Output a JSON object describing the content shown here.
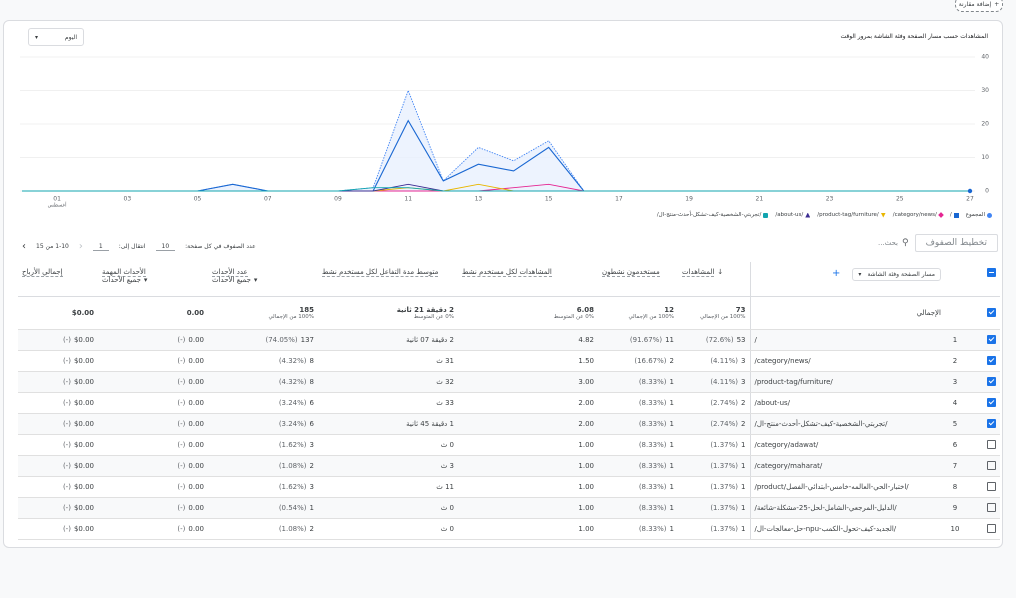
{
  "header": {
    "compare_button": "إضافة مقارنة"
  },
  "chart_data": {
    "type": "line",
    "title": "المشاهدات حسب مسار الصفحة وفئة الشاشة بمرور الوقت",
    "period": "اليوم",
    "categories": [
      null,
      "01",
      null,
      "03",
      null,
      "05",
      null,
      "07",
      null,
      "09",
      null,
      "11",
      null,
      "13",
      null,
      "15",
      null,
      "17",
      null,
      "19",
      null,
      "21",
      null,
      "23",
      null,
      "25",
      null,
      "27"
    ],
    "x_sublabel": "أغسطس",
    "ylim": [
      0,
      40
    ],
    "yticks": [
      0,
      10,
      20,
      30,
      40
    ],
    "grid": true,
    "series": [
      {
        "name": "المجموع",
        "color": "#4285f4",
        "values": [
          0,
          0,
          0,
          0,
          0,
          0,
          2,
          0,
          0,
          0,
          1,
          30,
          3,
          13,
          9,
          15,
          0,
          0,
          0,
          0,
          0,
          0,
          0,
          0,
          0,
          0,
          0,
          0
        ]
      },
      {
        "name": "/",
        "color": "#1967d2",
        "values": [
          0,
          0,
          0,
          0,
          0,
          0,
          2,
          0,
          0,
          0,
          0,
          21,
          3,
          8,
          6,
          13,
          0,
          0,
          0,
          0,
          0,
          0,
          0,
          0,
          0,
          0,
          0,
          0
        ]
      },
      {
        "name": "/category/news/",
        "color": "#e52592",
        "values": [
          0,
          0,
          0,
          0,
          0,
          0,
          0,
          0,
          0,
          0,
          0,
          0,
          0,
          0,
          1,
          2,
          0,
          0,
          0,
          0,
          0,
          0,
          0,
          0,
          0,
          0,
          0,
          0
        ]
      },
      {
        "name": "/product-tag/furniture/",
        "color": "#e8b600",
        "values": [
          0,
          0,
          0,
          0,
          0,
          0,
          0,
          0,
          0,
          0,
          0,
          1,
          0,
          2,
          0,
          0,
          0,
          0,
          0,
          0,
          0,
          0,
          0,
          0,
          0,
          0,
          0,
          0
        ]
      },
      {
        "name": "/about-us/",
        "color": "#3c2d92",
        "values": [
          0,
          0,
          0,
          0,
          0,
          0,
          0,
          0,
          0,
          0,
          0,
          2,
          0,
          0,
          0,
          0,
          0,
          0,
          0,
          0,
          0,
          0,
          0,
          0,
          0,
          0,
          0,
          0
        ]
      },
      {
        "name": "/تجربتي-الشخصية-كيف-تشكل-أحدث-منتج-ال/",
        "color": "#12a4af",
        "values": [
          0,
          0,
          0,
          0,
          0,
          0,
          0,
          0,
          0,
          0,
          1,
          1,
          0,
          0,
          0,
          0,
          0,
          0,
          0,
          0,
          0,
          0,
          0,
          0,
          0,
          0,
          0,
          0
        ]
      }
    ]
  },
  "toolbar": {
    "search_placeholder": "بحث...",
    "layout_button": "تخطيط الصفوف",
    "rows_per_page_label": "عدد الصفوف في كل صفحة:",
    "rows_per_page": "10",
    "goto_label": "انتقال إلى:",
    "goto_value": "1",
    "range": "1-10 من 15"
  },
  "table": {
    "dimension": "مسار الصفحة وفئة الشاشة",
    "columns": [
      {
        "label": "المشاهدات"
      },
      {
        "label": "مستخدمون نشطون"
      },
      {
        "label": "المشاهدات لكل مستخدم نشط"
      },
      {
        "label": "متوسط مدة التفاعل لكل مستخدم نشط"
      },
      {
        "label": "عدد الأحداث",
        "filter": "جميع الأحداث"
      },
      {
        "label": "الأحداث المهمة",
        "filter": "جميع الأحداث"
      },
      {
        "label": "إجمالي الأرباح"
      }
    ],
    "totals": {
      "label": "الإجمالي",
      "selected": true,
      "cells": [
        {
          "value": "73",
          "note": "100% من الإجمالي"
        },
        {
          "value": "12",
          "note": "100% من الإجمالي"
        },
        {
          "value": "6.08",
          "note": "0% عن المتوسط"
        },
        {
          "value": "2 دقيقة 21 ثانية",
          "note": "0% عن المتوسط"
        },
        {
          "value": "185",
          "note": "100% من الإجمالي"
        },
        {
          "value": "0.00"
        },
        {
          "value": "$0.00"
        }
      ]
    },
    "rows": [
      {
        "index": "1",
        "page": "/",
        "selected": true,
        "cells": [
          {
            "value": "53",
            "pct": "(72.6%)"
          },
          {
            "value": "11",
            "pct": "(91.67%)"
          },
          {
            "value": "4.82"
          },
          {
            "value": "2 دقيقة 07 ثانية"
          },
          {
            "value": "137",
            "pct": "(74.05%)"
          },
          {
            "value": "0.00",
            "pct": "(-)"
          },
          {
            "value": "$0.00",
            "pct": "(-)"
          }
        ]
      },
      {
        "index": "2",
        "page": "/category/news/",
        "selected": true,
        "cells": [
          {
            "value": "3",
            "pct": "(4.11%)"
          },
          {
            "value": "2",
            "pct": "(16.67%)"
          },
          {
            "value": "1.50"
          },
          {
            "value": "31 ث"
          },
          {
            "value": "8",
            "pct": "(4.32%)"
          },
          {
            "value": "0.00",
            "pct": "(-)"
          },
          {
            "value": "$0.00",
            "pct": "(-)"
          }
        ]
      },
      {
        "index": "3",
        "page": "/product-tag/furniture/",
        "selected": true,
        "cells": [
          {
            "value": "3",
            "pct": "(4.11%)"
          },
          {
            "value": "1",
            "pct": "(8.33%)"
          },
          {
            "value": "3.00"
          },
          {
            "value": "32 ث"
          },
          {
            "value": "8",
            "pct": "(4.32%)"
          },
          {
            "value": "0.00",
            "pct": "(-)"
          },
          {
            "value": "$0.00",
            "pct": "(-)"
          }
        ]
      },
      {
        "index": "4",
        "page": "/about-us/",
        "selected": true,
        "cells": [
          {
            "value": "2",
            "pct": "(2.74%)"
          },
          {
            "value": "1",
            "pct": "(8.33%)"
          },
          {
            "value": "2.00"
          },
          {
            "value": "33 ث"
          },
          {
            "value": "6",
            "pct": "(3.24%)"
          },
          {
            "value": "0.00",
            "pct": "(-)"
          },
          {
            "value": "$0.00",
            "pct": "(-)"
          }
        ]
      },
      {
        "index": "5",
        "page": "/تجربتي-الشخصية-كيف-تشكل-أحدث-منتج-ال/",
        "selected": true,
        "cells": [
          {
            "value": "2",
            "pct": "(2.74%)"
          },
          {
            "value": "1",
            "pct": "(8.33%)"
          },
          {
            "value": "2.00"
          },
          {
            "value": "1 دقيقة 45 ثانية"
          },
          {
            "value": "6",
            "pct": "(3.24%)"
          },
          {
            "value": "0.00",
            "pct": "(-)"
          },
          {
            "value": "$0.00",
            "pct": "(-)"
          }
        ]
      },
      {
        "index": "6",
        "page": "/category/adawat/",
        "selected": false,
        "cells": [
          {
            "value": "1",
            "pct": "(1.37%)"
          },
          {
            "value": "1",
            "pct": "(8.33%)"
          },
          {
            "value": "1.00"
          },
          {
            "value": "0 ث"
          },
          {
            "value": "3",
            "pct": "(1.62%)"
          },
          {
            "value": "0.00",
            "pct": "(-)"
          },
          {
            "value": "$0.00",
            "pct": "(-)"
          }
        ]
      },
      {
        "index": "7",
        "page": "/category/maharat/",
        "selected": false,
        "cells": [
          {
            "value": "1",
            "pct": "(1.37%)"
          },
          {
            "value": "1",
            "pct": "(8.33%)"
          },
          {
            "value": "1.00"
          },
          {
            "value": "3 ث"
          },
          {
            "value": "2",
            "pct": "(1.08%)"
          },
          {
            "value": "0.00",
            "pct": "(-)"
          },
          {
            "value": "$0.00",
            "pct": "(-)"
          }
        ]
      },
      {
        "index": "8",
        "page": "/product/اختبار-الحي-العالمه-خامس-ابتدائي-الفصل/",
        "selected": false,
        "cells": [
          {
            "value": "1",
            "pct": "(1.37%)"
          },
          {
            "value": "1",
            "pct": "(8.33%)"
          },
          {
            "value": "1.00"
          },
          {
            "value": "11 ث"
          },
          {
            "value": "3",
            "pct": "(1.62%)"
          },
          {
            "value": "0.00",
            "pct": "(-)"
          },
          {
            "value": "$0.00",
            "pct": "(-)"
          }
        ]
      },
      {
        "index": "9",
        "page": "/الدليل-المرجعي-الشامل-لحل-25-مشكلة-شائعة/",
        "selected": false,
        "cells": [
          {
            "value": "1",
            "pct": "(1.37%)"
          },
          {
            "value": "1",
            "pct": "(8.33%)"
          },
          {
            "value": "1.00"
          },
          {
            "value": "0 ث"
          },
          {
            "value": "1",
            "pct": "(0.54%)"
          },
          {
            "value": "0.00",
            "pct": "(-)"
          },
          {
            "value": "$0.00",
            "pct": "(-)"
          }
        ]
      },
      {
        "index": "10",
        "page": "/حل-معالجات-ال-npu-الجديد-كيف-تحول-الكمب/",
        "selected": false,
        "cells": [
          {
            "value": "1",
            "pct": "(1.37%)"
          },
          {
            "value": "1",
            "pct": "(8.33%)"
          },
          {
            "value": "1.00"
          },
          {
            "value": "0 ث"
          },
          {
            "value": "2",
            "pct": "(1.08%)"
          },
          {
            "value": "0.00",
            "pct": "(-)"
          },
          {
            "value": "$0.00",
            "pct": "(-)"
          }
        ]
      }
    ]
  }
}
